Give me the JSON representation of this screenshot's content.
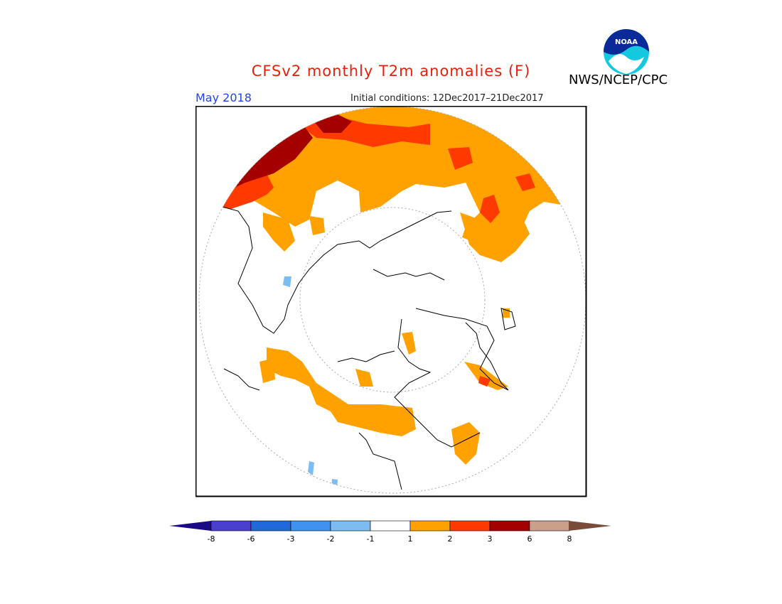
{
  "title": "CFSv2 monthly T2m anomalies (F)",
  "agency": "NWS/NCEP/CPC",
  "logo_text": "NOAA",
  "target_month": "May 2018",
  "initial_conditions": "Initial conditions: 12Dec2017–21Dec2017",
  "colorbar": {
    "ticks": [
      "-8",
      "-6",
      "-3",
      "-2",
      "-1",
      "1",
      "2",
      "3",
      "6",
      "8"
    ],
    "low_extend_color": "#1a0a86",
    "colors": [
      "#4b3fd0",
      "#1f6ad8",
      "#3d93ef",
      "#7cbcf0",
      "#ffffff",
      "#ffa200",
      "#ff3a00",
      "#a50000",
      "#caa08a"
    ],
    "high_extend_color": "#7a4b38"
  },
  "map_colors": {
    "warm_1_2": "#ffa200",
    "warm_2_3": "#ff3a00",
    "warm_3_6": "#a50000",
    "cool_1_2": "#7cbcf0"
  }
}
